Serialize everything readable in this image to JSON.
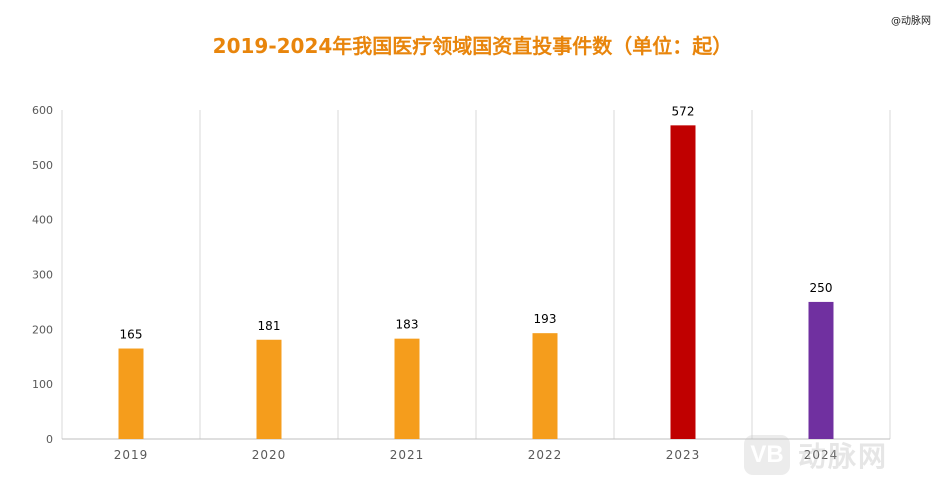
{
  "source_tag": "@动脉网",
  "watermark": {
    "logo_text": "VB",
    "text": "动脉网"
  },
  "chart_data": {
    "type": "bar",
    "title": "2019-2024年我国医疗领域国资直投事件数（单位：起）",
    "categories": [
      "2019",
      "2020",
      "2021",
      "2022",
      "2023",
      "2024"
    ],
    "values": [
      165,
      181,
      183,
      193,
      572,
      250
    ],
    "bar_colors": [
      "#f59d1c",
      "#f59d1c",
      "#f59d1c",
      "#f59d1c",
      "#c00000",
      "#7030a0"
    ],
    "ylim": [
      0,
      600
    ],
    "yticks": [
      0,
      100,
      200,
      300,
      400,
      500,
      600
    ],
    "xlabel": "",
    "ylabel": "",
    "grid": "vertical",
    "legend": "none",
    "data_labels": true
  }
}
